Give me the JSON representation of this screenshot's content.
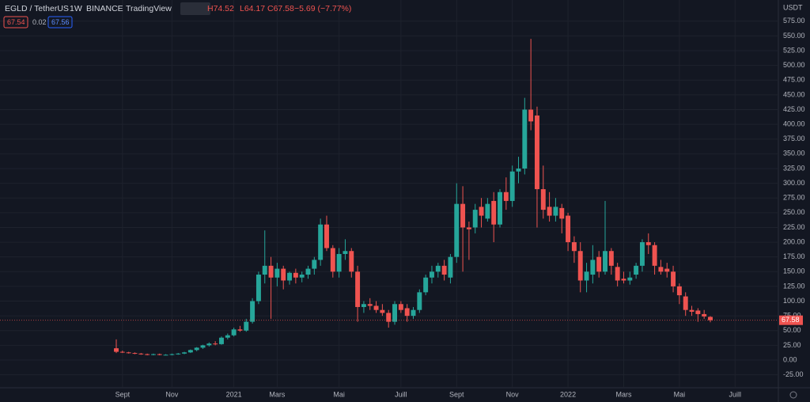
{
  "header": {
    "symbol": "EGLD / TetherUS",
    "interval": "1W",
    "exchange": "BINANCE",
    "source": "TradingView",
    "high": "H74.52",
    "low": "L64.17",
    "close": "C67.58",
    "change": "−5.69 (−7.77%)",
    "badges": [
      "67.54",
      "0.02",
      "67.56"
    ],
    "currency": "USDT",
    "price_tag": "67.58"
  },
  "chart_data": {
    "type": "candlestick",
    "up_color": "#26a69a",
    "down_color": "#ef5350",
    "open": [
      20,
      14,
      13,
      12,
      11,
      10,
      9,
      10,
      9,
      9,
      10,
      11,
      13,
      17,
      21,
      25,
      28,
      27,
      38,
      42,
      52,
      50,
      65,
      100,
      145,
      160,
      140,
      155,
      135,
      148,
      140,
      145,
      155,
      170,
      230,
      190,
      150,
      180,
      185,
      150,
      90,
      95,
      92,
      85,
      80,
      65,
      95,
      88,
      75,
      85,
      115,
      140,
      150,
      160,
      140,
      175,
      265,
      225,
      225,
      260,
      240,
      270,
      230,
      285,
      270,
      320,
      325,
      425,
      415,
      290,
      260,
      245,
      258,
      245,
      200,
      185,
      135,
      145,
      175,
      150,
      185,
      158,
      138,
      135,
      145,
      160,
      200,
      195,
      158,
      155,
      150,
      125,
      108,
      85,
      84,
      78,
      73.27
    ],
    "high": [
      35,
      16,
      14,
      13,
      12,
      11,
      11,
      11,
      10,
      11,
      12,
      14,
      18,
      22,
      26,
      30,
      32,
      40,
      45,
      55,
      58,
      70,
      105,
      150,
      220,
      175,
      165,
      160,
      150,
      155,
      150,
      160,
      175,
      240,
      245,
      195,
      190,
      205,
      190,
      160,
      100,
      105,
      100,
      95,
      85,
      100,
      100,
      95,
      90,
      120,
      145,
      160,
      165,
      170,
      180,
      300,
      295,
      235,
      265,
      275,
      275,
      285,
      290,
      310,
      330,
      345,
      445,
      545,
      430,
      330,
      285,
      275,
      265,
      250,
      210,
      200,
      165,
      195,
      185,
      270,
      190,
      165,
      150,
      150,
      165,
      205,
      215,
      200,
      170,
      165,
      160,
      130,
      115,
      92,
      88,
      85,
      74.52
    ],
    "low": [
      12,
      12,
      11,
      10,
      9,
      8,
      8,
      8,
      8,
      8,
      9,
      10,
      12,
      15,
      19,
      23,
      25,
      26,
      35,
      40,
      48,
      48,
      62,
      95,
      130,
      70,
      125,
      120,
      128,
      130,
      132,
      138,
      145,
      160,
      185,
      140,
      140,
      170,
      140,
      65,
      80,
      85,
      80,
      75,
      55,
      60,
      80,
      65,
      70,
      80,
      110,
      130,
      140,
      135,
      130,
      165,
      150,
      170,
      215,
      225,
      235,
      200,
      225,
      255,
      260,
      300,
      315,
      390,
      225,
      240,
      235,
      235,
      215,
      185,
      165,
      115,
      115,
      130,
      140,
      145,
      145,
      125,
      130,
      128,
      138,
      150,
      180,
      145,
      145,
      140,
      115,
      95,
      75,
      75,
      65,
      70,
      64.17
    ],
    "close": [
      14,
      13,
      12,
      11,
      10,
      9,
      10,
      9,
      9,
      10,
      11,
      13,
      17,
      21,
      25,
      28,
      27,
      38,
      42,
      52,
      50,
      65,
      100,
      145,
      160,
      140,
      155,
      135,
      148,
      140,
      145,
      155,
      170,
      230,
      190,
      150,
      180,
      185,
      150,
      90,
      95,
      92,
      85,
      80,
      65,
      95,
      85,
      75,
      85,
      115,
      140,
      150,
      160,
      145,
      175,
      265,
      225,
      222,
      255,
      245,
      265,
      230,
      285,
      270,
      320,
      325,
      425,
      405,
      290,
      255,
      245,
      260,
      240,
      200,
      185,
      135,
      150,
      170,
      150,
      185,
      160,
      135,
      135,
      140,
      160,
      200,
      195,
      160,
      150,
      150,
      125,
      110,
      85,
      82,
      78,
      74,
      67.58
    ],
    "xticks": [
      {
        "value": 1,
        "label": "Sept"
      },
      {
        "value": 9,
        "label": "Nov"
      },
      {
        "value": 19,
        "label": "2021"
      },
      {
        "value": 26,
        "label": "Mars"
      },
      {
        "value": 36,
        "label": "Mai"
      },
      {
        "value": 46,
        "label": "Juill"
      },
      {
        "value": 55,
        "label": "Sept"
      },
      {
        "value": 64,
        "label": "Nov"
      },
      {
        "value": 73,
        "label": "2022"
      },
      {
        "value": 82,
        "label": "Mars"
      },
      {
        "value": 91,
        "label": "Mai"
      },
      {
        "value": 100,
        "label": "Juill"
      }
    ],
    "ylim": [
      -47,
      611
    ],
    "yticks": [
      {
        "value": 575,
        "label": "575.00"
      },
      {
        "value": 550,
        "label": "550.00"
      },
      {
        "value": 525,
        "label": "525.00"
      },
      {
        "value": 500,
        "label": "500.00"
      },
      {
        "value": 475,
        "label": "475.00"
      },
      {
        "value": 450,
        "label": "450.00"
      },
      {
        "value": 425,
        "label": "425.00"
      },
      {
        "value": 400,
        "label": "400.00"
      },
      {
        "value": 375,
        "label": "375.00"
      },
      {
        "value": 350,
        "label": "350.00"
      },
      {
        "value": 325,
        "label": "325.00"
      },
      {
        "value": 300,
        "label": "300.00"
      },
      {
        "value": 275,
        "label": "275.00"
      },
      {
        "value": 250,
        "label": "250.00"
      },
      {
        "value": 225,
        "label": "225.00"
      },
      {
        "value": 200,
        "label": "200.00"
      },
      {
        "value": 175,
        "label": "175.00"
      },
      {
        "value": 150,
        "label": "150.00"
      },
      {
        "value": 125,
        "label": "125.00"
      },
      {
        "value": 100,
        "label": "100.00"
      },
      {
        "value": 75,
        "label": "75.00"
      },
      {
        "value": 50,
        "label": "50.00"
      },
      {
        "value": 25,
        "label": "25.00"
      },
      {
        "value": 0,
        "label": "0.00"
      },
      {
        "value": -25,
        "label": "-25.00"
      }
    ]
  }
}
